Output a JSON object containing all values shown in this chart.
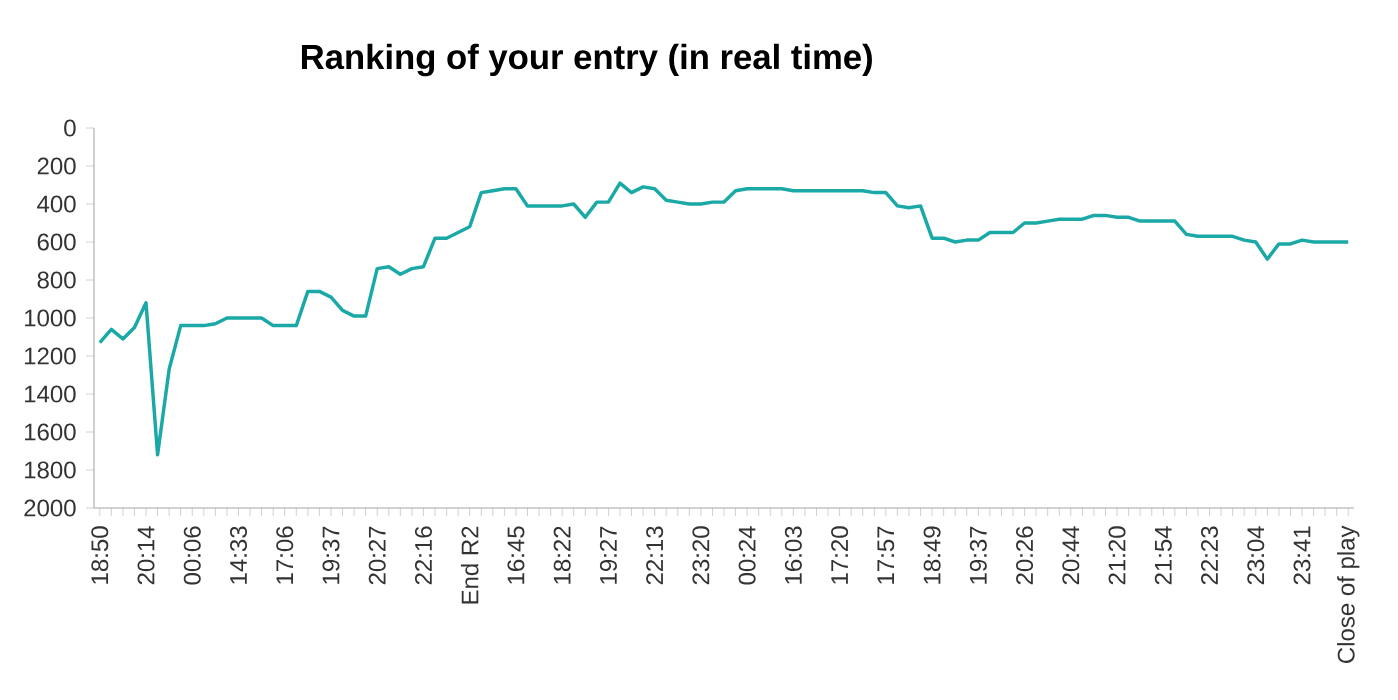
{
  "chart_data": {
    "type": "line",
    "title": "Ranking of your entry (in real time)",
    "categories": [
      "18:50",
      null,
      null,
      null,
      "20:14",
      null,
      null,
      null,
      "00:06",
      null,
      null,
      null,
      "14:33",
      null,
      null,
      null,
      "17:06",
      null,
      null,
      null,
      "19:37",
      null,
      null,
      null,
      "20:27",
      null,
      null,
      null,
      "22:16",
      null,
      null,
      null,
      "End R2",
      null,
      null,
      null,
      "16:45",
      null,
      null,
      null,
      "18:22",
      null,
      null,
      null,
      "19:27",
      null,
      null,
      null,
      "22:13",
      null,
      null,
      null,
      "23:20",
      null,
      null,
      null,
      "00:24",
      null,
      null,
      null,
      "16:03",
      null,
      null,
      null,
      "17:20",
      null,
      null,
      null,
      "17:57",
      null,
      null,
      null,
      "18:49",
      null,
      null,
      null,
      "19:37",
      null,
      null,
      null,
      "20:26",
      null,
      null,
      null,
      "20:44",
      null,
      null,
      null,
      "21:20",
      null,
      null,
      null,
      "21:54",
      null,
      null,
      null,
      "22:23",
      null,
      null,
      null,
      "23:04",
      null,
      null,
      null,
      "23:41",
      null,
      null,
      null,
      "Close of play"
    ],
    "series": [
      {
        "color": "#1aa9a6",
        "values": [
          1130,
          1060,
          1110,
          1050,
          920,
          1720,
          1270,
          1040,
          1040,
          1040,
          1030,
          1000,
          1000,
          1000,
          1000,
          1040,
          1040,
          1040,
          860,
          860,
          890,
          960,
          990,
          990,
          740,
          730,
          770,
          740,
          730,
          580,
          580,
          550,
          520,
          340,
          330,
          320,
          320,
          410,
          410,
          410,
          410,
          400,
          470,
          390,
          390,
          290,
          340,
          310,
          320,
          380,
          390,
          400,
          400,
          390,
          390,
          330,
          320,
          320,
          320,
          320,
          330,
          330,
          330,
          330,
          330,
          330,
          330,
          340,
          340,
          410,
          420,
          410,
          580,
          580,
          600,
          590,
          590,
          550,
          550,
          550,
          500,
          500,
          490,
          480,
          480,
          480,
          460,
          460,
          470,
          470,
          490,
          490,
          490,
          490,
          560,
          570,
          570,
          570,
          570,
          590,
          600,
          690,
          610,
          610,
          590,
          600,
          600,
          600,
          600
        ]
      }
    ],
    "ylim": [
      2000,
      0
    ],
    "yticks": [
      0,
      200,
      400,
      600,
      800,
      1000,
      1200,
      1400,
      1600,
      1800,
      2000
    ],
    "grid": false,
    "marker": "none",
    "line_style": "solid"
  }
}
